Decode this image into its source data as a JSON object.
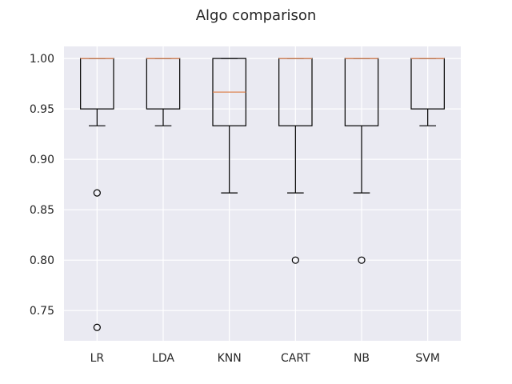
{
  "chart_data": {
    "type": "box",
    "title": "Algo comparison",
    "xlabel": "",
    "ylabel": "",
    "ylim": [
      0.72,
      1.012
    ],
    "yticks": [
      0.75,
      0.8,
      0.85,
      0.9,
      0.95,
      1.0
    ],
    "ytick_labels": [
      "0.75",
      "0.80",
      "0.85",
      "0.90",
      "0.95",
      "1.00"
    ],
    "grid": true,
    "categories": [
      "LR",
      "LDA",
      "KNN",
      "CART",
      "NB",
      "SVM"
    ],
    "boxes": [
      {
        "name": "LR",
        "whisker_low": 0.9333,
        "q1": 0.95,
        "median": 1.0,
        "q3": 1.0,
        "whisker_high": 1.0,
        "outliers": [
          0.8667,
          0.7333
        ]
      },
      {
        "name": "LDA",
        "whisker_low": 0.9333,
        "q1": 0.95,
        "median": 1.0,
        "q3": 1.0,
        "whisker_high": 1.0,
        "outliers": []
      },
      {
        "name": "KNN",
        "whisker_low": 0.8667,
        "q1": 0.9333,
        "median": 0.9667,
        "q3": 1.0,
        "whisker_high": 1.0,
        "outliers": []
      },
      {
        "name": "CART",
        "whisker_low": 0.8667,
        "q1": 0.9333,
        "median": 1.0,
        "q3": 1.0,
        "whisker_high": 1.0,
        "outliers": [
          0.8
        ]
      },
      {
        "name": "NB",
        "whisker_low": 0.8667,
        "q1": 0.9333,
        "median": 1.0,
        "q3": 1.0,
        "whisker_high": 1.0,
        "outliers": [
          0.8
        ]
      },
      {
        "name": "SVM",
        "whisker_low": 0.9333,
        "q1": 0.95,
        "median": 1.0,
        "q3": 1.0,
        "whisker_high": 1.0,
        "outliers": []
      }
    ],
    "colors": {
      "background": "#eaeaf2",
      "grid": "#ffffff",
      "box": "#000000",
      "median": "#dd8452",
      "text": "#262626"
    }
  }
}
